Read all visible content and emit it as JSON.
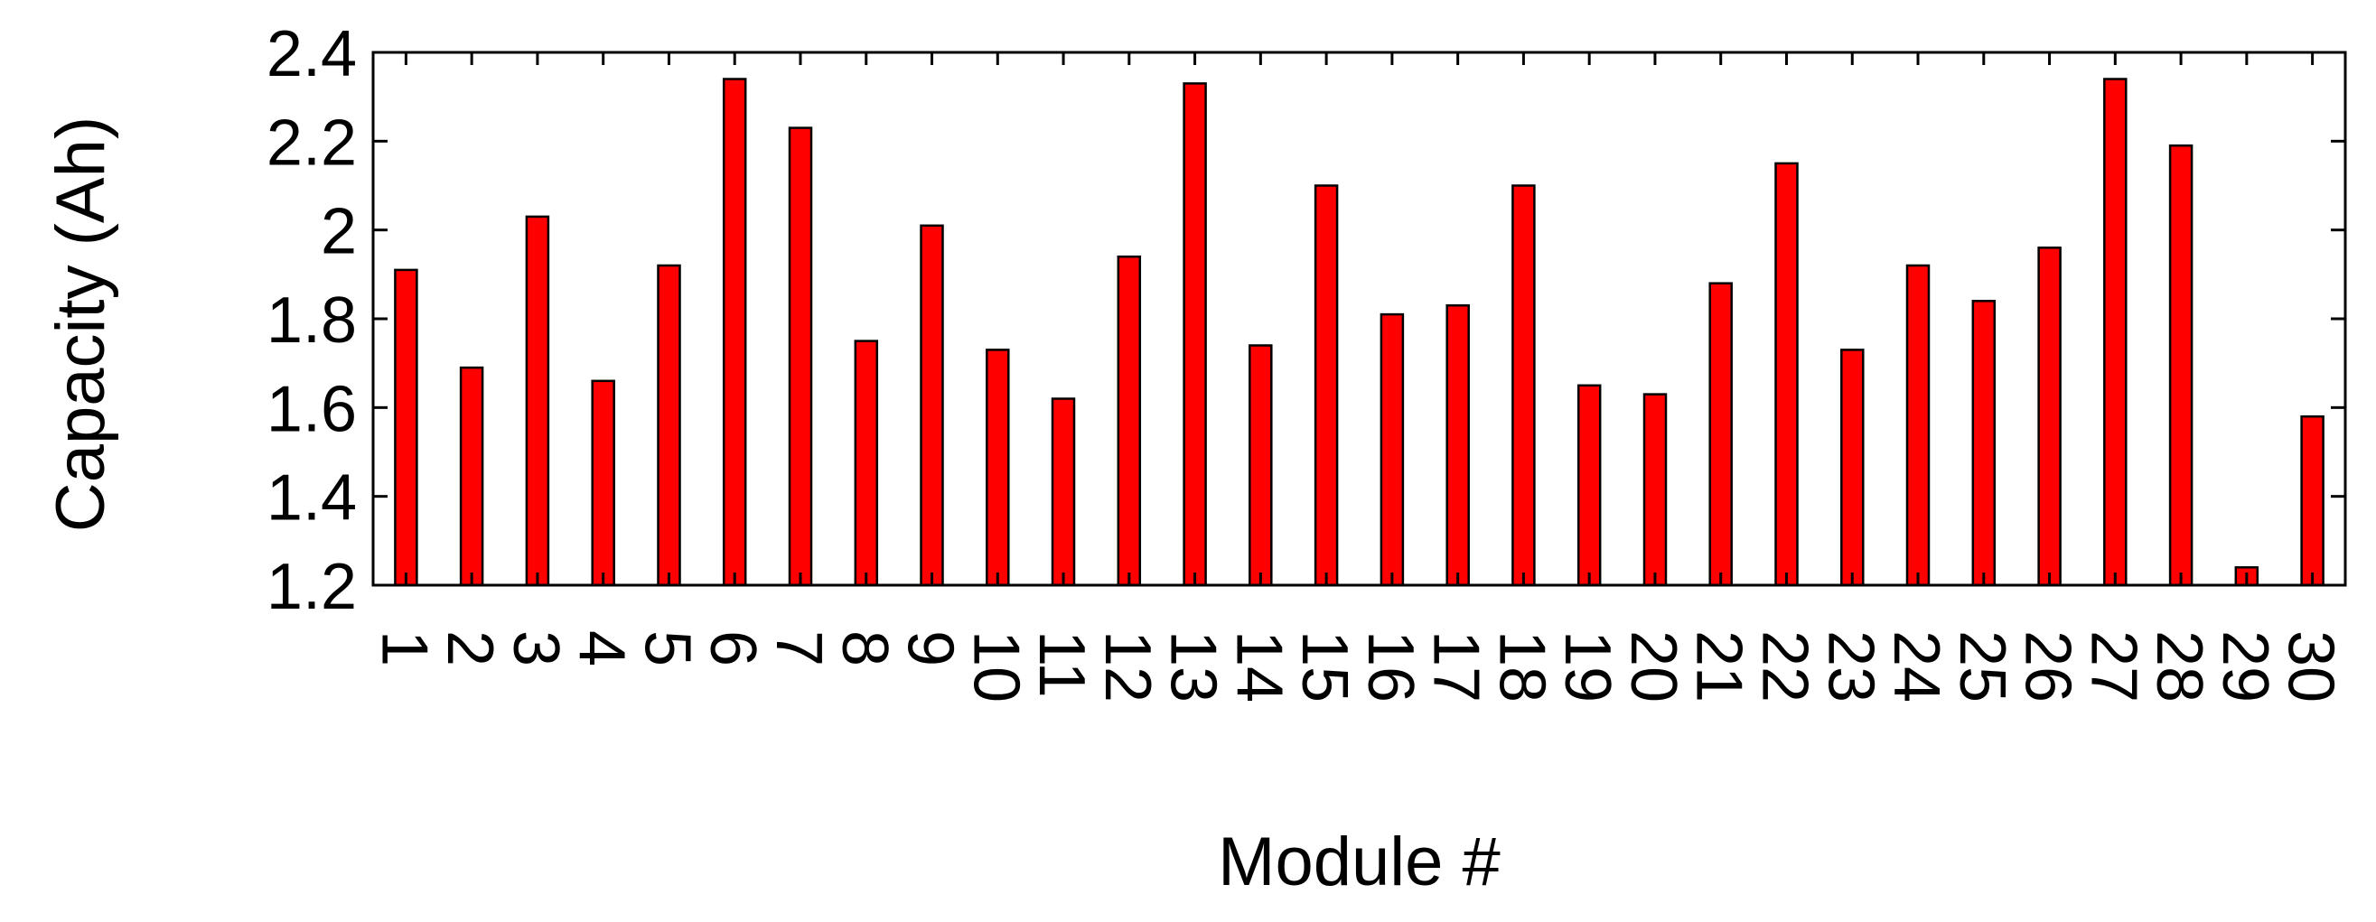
{
  "chart_data": {
    "type": "bar",
    "title": "",
    "xlabel": "Module #",
    "ylabel": "Capacity (Ah)",
    "ylim": [
      1.2,
      2.4
    ],
    "yticks": [
      "1.2",
      "1.4",
      "1.6",
      "1.8",
      "2",
      "2.2",
      "2.4"
    ],
    "grid": false,
    "legend": "none",
    "bar_color": "#ff0000",
    "bar_edge_color": "#000000",
    "categories": [
      "1",
      "2",
      "3",
      "4",
      "5",
      "6",
      "7",
      "8",
      "9",
      "10",
      "11",
      "12",
      "13",
      "14",
      "15",
      "16",
      "17",
      "18",
      "19",
      "20",
      "21",
      "22",
      "23",
      "24",
      "25",
      "26",
      "27",
      "28",
      "29",
      "30"
    ],
    "values": [
      1.91,
      1.69,
      2.03,
      1.66,
      1.92,
      2.34,
      2.23,
      1.75,
      2.01,
      1.73,
      1.62,
      1.94,
      2.33,
      1.74,
      2.1,
      1.81,
      1.83,
      2.1,
      1.65,
      1.63,
      1.88,
      2.15,
      1.73,
      1.92,
      1.84,
      1.96,
      2.34,
      2.19,
      1.24,
      1.58
    ]
  }
}
